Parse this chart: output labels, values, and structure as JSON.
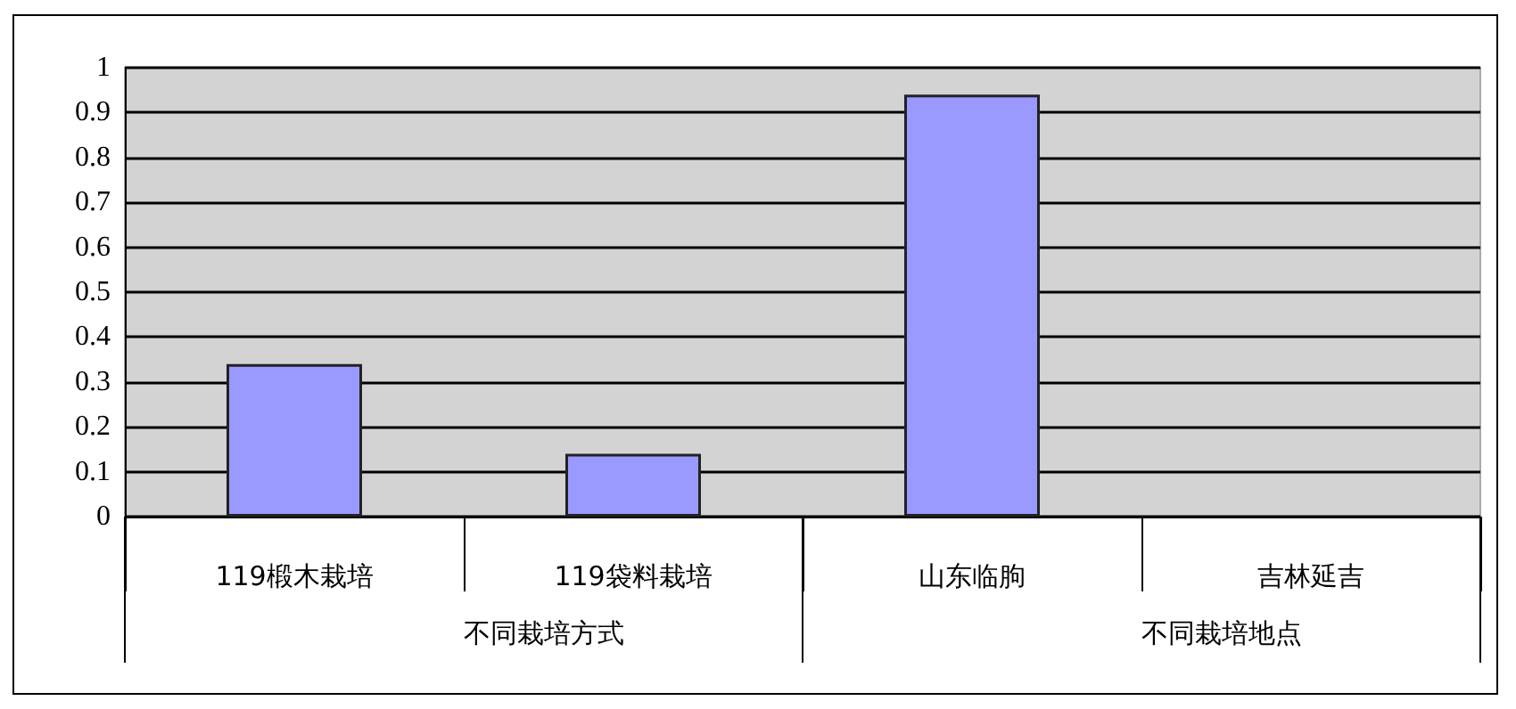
{
  "chart_data": {
    "type": "bar",
    "categories": [
      "119椴木栽培",
      "119袋料栽培",
      "山东临朐",
      "吉林延吉"
    ],
    "values": [
      0.34,
      0.14,
      0.94,
      null
    ],
    "color": "#9999ff",
    "ylim": [
      0,
      1
    ],
    "yticks": [
      0,
      0.1,
      0.2,
      0.3,
      0.4,
      0.5,
      0.6,
      0.7,
      0.8,
      0.9,
      1
    ],
    "grid": "y",
    "annotations": [
      "不同栽培方式",
      "不同栽培地点"
    ]
  }
}
